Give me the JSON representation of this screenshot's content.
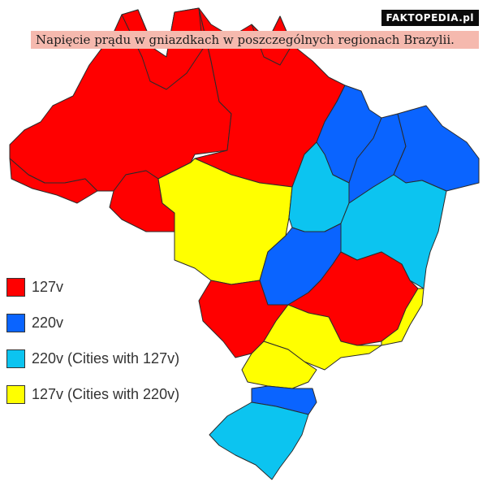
{
  "watermark": "FAKTOPEDIA.pl",
  "caption": "Napięcie prądu w gniazdkach w poszczególnych regionach Brazylii.",
  "colors": {
    "red": "#ff0000",
    "blue": "#0a64ff",
    "light_blue": "#0cc4f0",
    "yellow": "#ffff00",
    "border": "#2a2a2a"
  },
  "legend": [
    {
      "label": "127v",
      "color": "#ff0000"
    },
    {
      "label": "220v",
      "color": "#0a64ff"
    },
    {
      "label": "220v (Cities with 127v)",
      "color": "#0cc4f0"
    },
    {
      "label": "127v (Cities with 220v)",
      "color": "#ffff00"
    }
  ]
}
